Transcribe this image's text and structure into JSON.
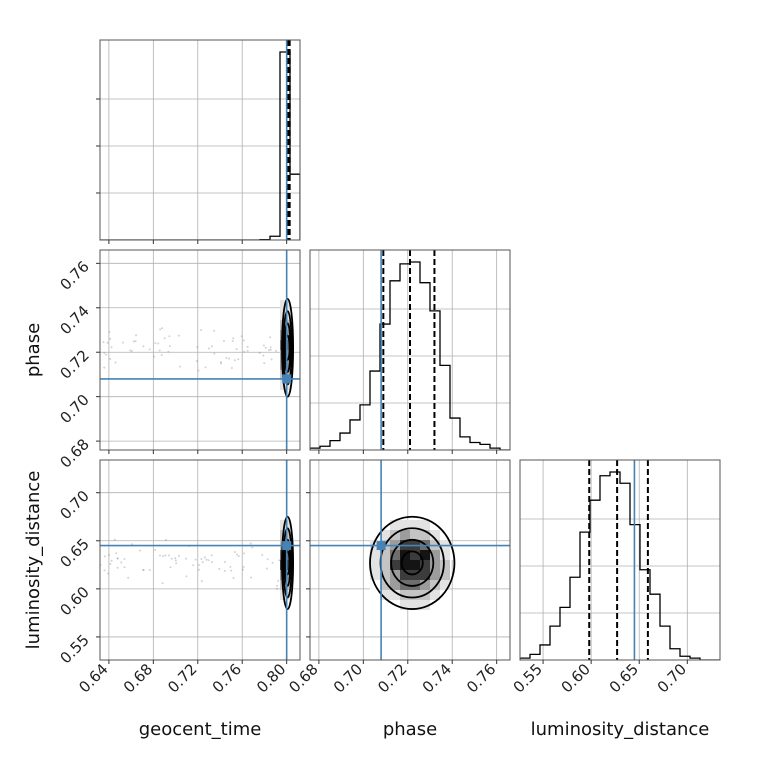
{
  "colors": {
    "truth": "#4682b4",
    "histogram": "#000000",
    "grid": "#b0b0b0",
    "points": "#7f7f7f",
    "density_levels": [
      "#ffffff",
      "#e3e3e3",
      "#c4c4c4",
      "#9c9c9c",
      "#6e6e6e",
      "#3c3c3c",
      "#141414"
    ]
  },
  "chart_data": {
    "type": "corner",
    "grid": true,
    "parameters": [
      "geocent_time",
      "phase",
      "luminosity_distance"
    ],
    "ranges": {
      "geocent_time": [
        0.632,
        0.812
      ],
      "phase": [
        0.676,
        0.766
      ],
      "luminosity_distance": [
        0.526,
        0.734
      ]
    },
    "ticks": {
      "geocent_time": [
        "0.64",
        "0.68",
        "0.72",
        "0.76",
        "0.80"
      ],
      "phase": [
        "0.68",
        "0.70",
        "0.72",
        "0.74",
        "0.76"
      ],
      "luminosity_distance": [
        "0.55",
        "0.60",
        "0.65",
        "0.70"
      ]
    },
    "truths": {
      "geocent_time": 0.8,
      "phase": 0.708,
      "luminosity_distance": 0.645
    },
    "quantiles": {
      "geocent_time": [
        0.8004,
        0.8015,
        0.8027
      ],
      "phase": [
        0.709,
        0.721,
        0.732
      ],
      "luminosity_distance": [
        0.598,
        0.627,
        0.659
      ]
    },
    "marginals": {
      "geocent_time": {
        "edges": [
          0.632,
          0.641,
          0.65,
          0.659,
          0.668,
          0.677,
          0.686,
          0.695,
          0.704,
          0.713,
          0.722,
          0.731,
          0.74,
          0.749,
          0.758,
          0.767,
          0.776,
          0.785,
          0.794,
          0.803,
          0.812
        ],
        "counts": [
          0,
          0,
          0,
          0,
          0,
          0,
          0,
          0,
          0,
          0,
          0,
          0,
          0,
          0,
          0,
          0,
          0.002,
          0.02,
          1.0,
          0.35
        ]
      },
      "phase": {
        "edges": [
          0.676,
          0.6805,
          0.685,
          0.6895,
          0.694,
          0.6985,
          0.703,
          0.7075,
          0.712,
          0.7165,
          0.721,
          0.7255,
          0.73,
          0.7345,
          0.739,
          0.7435,
          0.748,
          0.7525,
          0.757,
          0.7615,
          0.766
        ],
        "counts": [
          0.01,
          0.02,
          0.05,
          0.09,
          0.16,
          0.24,
          0.42,
          0.67,
          0.9,
          0.99,
          1.0,
          0.89,
          0.74,
          0.45,
          0.17,
          0.07,
          0.04,
          0.03,
          0.01,
          0.0
        ]
      },
      "luminosity_distance": {
        "edges": [
          0.526,
          0.5364,
          0.5468,
          0.5572,
          0.5676,
          0.578,
          0.5884,
          0.5988,
          0.6092,
          0.6196,
          0.63,
          0.6404,
          0.6508,
          0.6612,
          0.6716,
          0.682,
          0.6924,
          0.7028,
          0.7132,
          0.7236,
          0.734
        ],
        "counts": [
          0.01,
          0.03,
          0.08,
          0.18,
          0.28,
          0.44,
          0.68,
          0.85,
          0.98,
          1.0,
          0.94,
          0.72,
          0.48,
          0.35,
          0.18,
          0.06,
          0.02,
          0.01,
          0.0,
          0.0
        ]
      }
    },
    "joint": [
      {
        "x": "geocent_time",
        "y": "phase",
        "peak": [
          0.8008,
          0.722
        ],
        "spread": [
          0.0025,
          0.011
        ]
      },
      {
        "x": "geocent_time",
        "y": "luminosity_distance",
        "peak": [
          0.8008,
          0.627
        ],
        "spread": [
          0.0025,
          0.024
        ]
      },
      {
        "x": "phase",
        "y": "luminosity_distance",
        "peak": [
          0.722,
          0.627
        ],
        "spread": [
          0.0095,
          0.024
        ]
      }
    ]
  }
}
